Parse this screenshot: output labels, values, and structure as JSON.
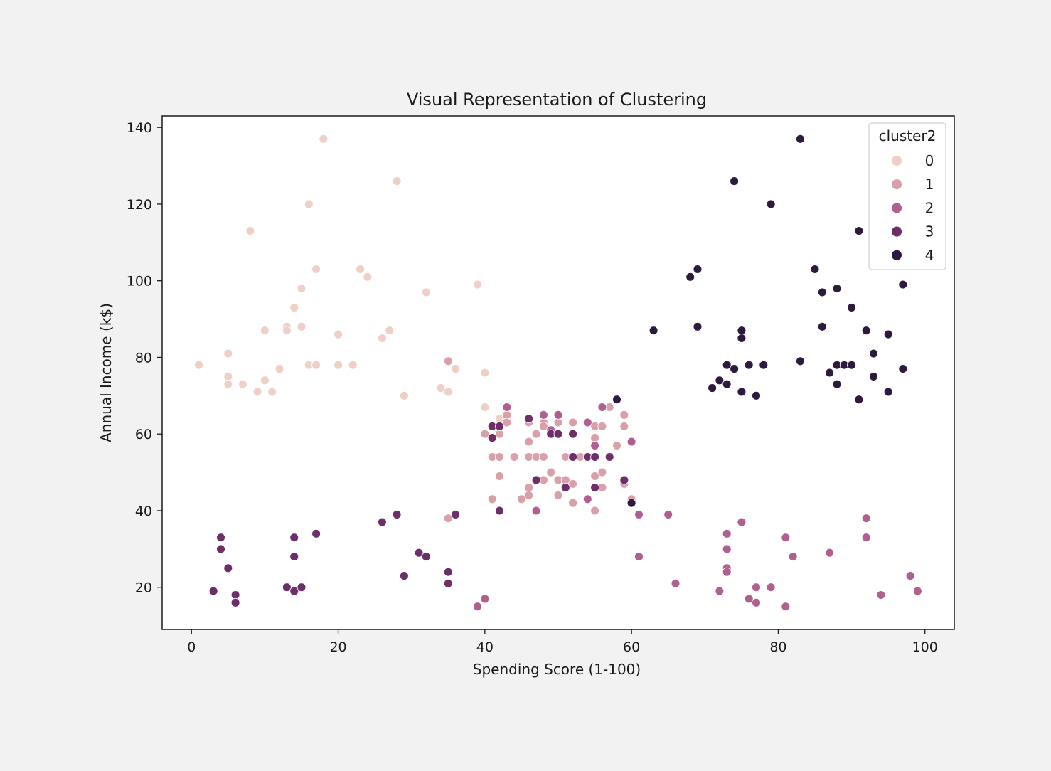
{
  "chart_data": {
    "type": "scatter",
    "title": "Visual Representation of Clustering",
    "xlabel": "Spending Score (1-100)",
    "ylabel": "Annual Income (k$)",
    "xlim": [
      -4,
      104
    ],
    "ylim": [
      9,
      143
    ],
    "xticks": [
      0,
      20,
      40,
      60,
      80,
      100
    ],
    "yticks": [
      20,
      40,
      60,
      80,
      100,
      120,
      140
    ],
    "grid": false,
    "legend": {
      "title": "cluster2",
      "placement": "top-right"
    },
    "series": [
      {
        "name": "0",
        "color": "#efd0c6",
        "points": [
          [
            1,
            78
          ],
          [
            5,
            81
          ],
          [
            5,
            75
          ],
          [
            5,
            73
          ],
          [
            7,
            73
          ],
          [
            8,
            113
          ],
          [
            9,
            71
          ],
          [
            10,
            87
          ],
          [
            10,
            74
          ],
          [
            11,
            71
          ],
          [
            12,
            77
          ],
          [
            13,
            88
          ],
          [
            13,
            87
          ],
          [
            14,
            93
          ],
          [
            15,
            98
          ],
          [
            15,
            88
          ],
          [
            16,
            120
          ],
          [
            16,
            78
          ],
          [
            17,
            103
          ],
          [
            17,
            78
          ],
          [
            18,
            137
          ],
          [
            20,
            86
          ],
          [
            20,
            78
          ],
          [
            22,
            78
          ],
          [
            23,
            103
          ],
          [
            24,
            101
          ],
          [
            26,
            85
          ],
          [
            27,
            87
          ],
          [
            28,
            126
          ],
          [
            29,
            70
          ],
          [
            32,
            97
          ],
          [
            34,
            72
          ],
          [
            35,
            71
          ],
          [
            36,
            77
          ],
          [
            39,
            99
          ],
          [
            40,
            76
          ],
          [
            40,
            67
          ],
          [
            42,
            64
          ],
          [
            43,
            64
          ]
        ]
      },
      {
        "name": "1",
        "color": "#d9a0a9",
        "points": [
          [
            35,
            79
          ],
          [
            35,
            38
          ],
          [
            40,
            60
          ],
          [
            41,
            54
          ],
          [
            41,
            43
          ],
          [
            42,
            60
          ],
          [
            42,
            54
          ],
          [
            42,
            49
          ],
          [
            43,
            65
          ],
          [
            43,
            63
          ],
          [
            44,
            54
          ],
          [
            45,
            43
          ],
          [
            46,
            63
          ],
          [
            46,
            58
          ],
          [
            46,
            54
          ],
          [
            46,
            46
          ],
          [
            46,
            44
          ],
          [
            47,
            60
          ],
          [
            47,
            54
          ],
          [
            48,
            63
          ],
          [
            48,
            62
          ],
          [
            48,
            54
          ],
          [
            48,
            48
          ],
          [
            49,
            50
          ],
          [
            50,
            63
          ],
          [
            50,
            48
          ],
          [
            50,
            44
          ],
          [
            51,
            54
          ],
          [
            51,
            48
          ],
          [
            52,
            63
          ],
          [
            52,
            47
          ],
          [
            52,
            42
          ],
          [
            53,
            54
          ],
          [
            55,
            62
          ],
          [
            55,
            59
          ],
          [
            55,
            49
          ],
          [
            55,
            40
          ],
          [
            56,
            50
          ],
          [
            56,
            46
          ],
          [
            56,
            62
          ],
          [
            57,
            67
          ],
          [
            58,
            57
          ],
          [
            59,
            65
          ],
          [
            59,
            62
          ],
          [
            59,
            47
          ],
          [
            60,
            43
          ],
          [
            60,
            42
          ]
        ]
      },
      {
        "name": "2",
        "color": "#b05f91",
        "points": [
          [
            39,
            15
          ],
          [
            40,
            17
          ],
          [
            43,
            67
          ],
          [
            47,
            40
          ],
          [
            48,
            65
          ],
          [
            49,
            61
          ],
          [
            50,
            65
          ],
          [
            54,
            63
          ],
          [
            54,
            43
          ],
          [
            55,
            57
          ],
          [
            56,
            67
          ],
          [
            60,
            58
          ],
          [
            61,
            39
          ],
          [
            61,
            28
          ],
          [
            65,
            39
          ],
          [
            66,
            21
          ],
          [
            72,
            19
          ],
          [
            73,
            34
          ],
          [
            73,
            30
          ],
          [
            73,
            25
          ],
          [
            73,
            24
          ],
          [
            75,
            37
          ],
          [
            76,
            17
          ],
          [
            77,
            20
          ],
          [
            77,
            16
          ],
          [
            79,
            20
          ],
          [
            81,
            33
          ],
          [
            81,
            15
          ],
          [
            82,
            28
          ],
          [
            87,
            29
          ],
          [
            92,
            38
          ],
          [
            92,
            33
          ],
          [
            94,
            18
          ],
          [
            98,
            23
          ],
          [
            99,
            19
          ]
        ]
      },
      {
        "name": "3",
        "color": "#6d2f6a",
        "points": [
          [
            3,
            19
          ],
          [
            4,
            33
          ],
          [
            4,
            30
          ],
          [
            5,
            25
          ],
          [
            6,
            18
          ],
          [
            6,
            16
          ],
          [
            13,
            20
          ],
          [
            14,
            33
          ],
          [
            14,
            28
          ],
          [
            14,
            19
          ],
          [
            15,
            20
          ],
          [
            17,
            34
          ],
          [
            26,
            37
          ],
          [
            28,
            39
          ],
          [
            29,
            23
          ],
          [
            31,
            29
          ],
          [
            32,
            28
          ],
          [
            35,
            24
          ],
          [
            35,
            21
          ],
          [
            36,
            39
          ],
          [
            41,
            62
          ],
          [
            41,
            59
          ],
          [
            42,
            62
          ],
          [
            42,
            40
          ],
          [
            46,
            64
          ],
          [
            47,
            48
          ],
          [
            49,
            60
          ],
          [
            50,
            60
          ],
          [
            51,
            46
          ],
          [
            52,
            60
          ],
          [
            52,
            54
          ],
          [
            54,
            54
          ],
          [
            55,
            54
          ],
          [
            55,
            46
          ],
          [
            57,
            54
          ],
          [
            59,
            48
          ]
        ]
      },
      {
        "name": "4",
        "color": "#2d1a3e",
        "points": [
          [
            58,
            69
          ],
          [
            60,
            42
          ],
          [
            63,
            87
          ],
          [
            68,
            101
          ],
          [
            69,
            103
          ],
          [
            69,
            88
          ],
          [
            71,
            72
          ],
          [
            72,
            74
          ],
          [
            73,
            78
          ],
          [
            73,
            73
          ],
          [
            74,
            126
          ],
          [
            74,
            77
          ],
          [
            75,
            87
          ],
          [
            75,
            85
          ],
          [
            75,
            71
          ],
          [
            76,
            78
          ],
          [
            77,
            70
          ],
          [
            78,
            78
          ],
          [
            79,
            120
          ],
          [
            83,
            137
          ],
          [
            83,
            79
          ],
          [
            85,
            103
          ],
          [
            86,
            97
          ],
          [
            86,
            88
          ],
          [
            87,
            76
          ],
          [
            88,
            98
          ],
          [
            88,
            78
          ],
          [
            88,
            73
          ],
          [
            89,
            78
          ],
          [
            90,
            93
          ],
          [
            90,
            78
          ],
          [
            91,
            113
          ],
          [
            91,
            69
          ],
          [
            92,
            87
          ],
          [
            93,
            81
          ],
          [
            93,
            75
          ],
          [
            95,
            86
          ],
          [
            95,
            71
          ],
          [
            97,
            99
          ],
          [
            97,
            77
          ]
        ]
      }
    ]
  }
}
